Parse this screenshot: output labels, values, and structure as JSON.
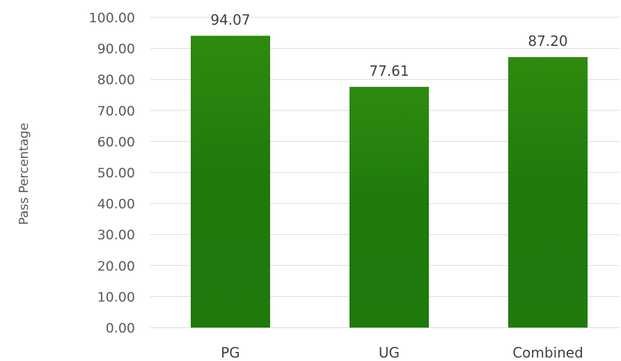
{
  "chart_data": {
    "type": "bar",
    "title": "",
    "xlabel": "",
    "ylabel": "Pass Percentage",
    "categories": [
      "PG",
      "UG",
      "Combined"
    ],
    "values": [
      94.07,
      77.61,
      87.2
    ],
    "value_labels": [
      "94.07",
      "77.61",
      "87.20"
    ],
    "ylim": [
      0,
      100
    ],
    "y_ticks": [
      0,
      10,
      20,
      30,
      40,
      50,
      60,
      70,
      80,
      90,
      100
    ],
    "y_tick_labels": [
      "0.00",
      "10.00",
      "20.00",
      "30.00",
      "40.00",
      "50.00",
      "60.00",
      "70.00",
      "80.00",
      "90.00",
      "100.00"
    ],
    "grid": true,
    "legend": "none",
    "bar_color_top": "#2e8b0f",
    "bar_color_bottom": "#1f7a0c"
  }
}
